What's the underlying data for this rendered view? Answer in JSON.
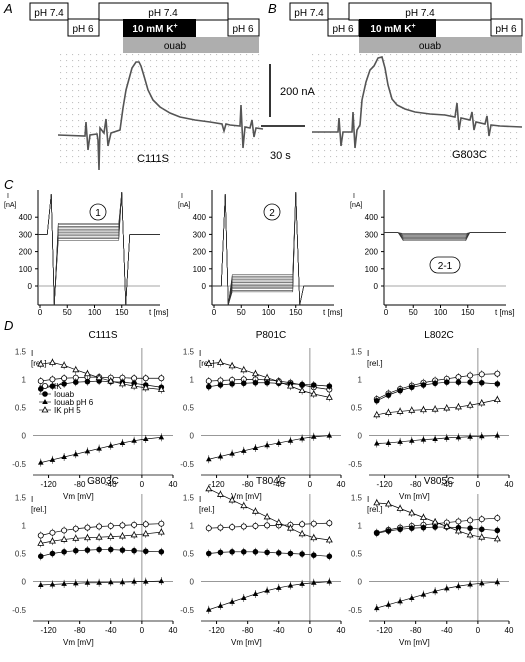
{
  "panel_letters": {
    "A": "A",
    "B": "B",
    "C": "C",
    "D": "D"
  },
  "colors": {
    "ink": "#000000",
    "ouabain_bar": "#aeaeae",
    "trace": "#555555",
    "dots": "#bdbdbd"
  },
  "protocol": {
    "ph74": "pH 7.4",
    "ph6": "pH 6",
    "k_label": "10 mM K",
    "k_sup": "+",
    "ouab": "ouab"
  },
  "traces": {
    "left_name": "C111S",
    "right_name": "G803C",
    "scale_current": "200 nA",
    "scale_time": "30 s"
  },
  "panel_c": {
    "y_label_top": "I",
    "y_label_unit": "[nA]",
    "x_label": "t [ms]",
    "y_ticks": [
      "400",
      "300",
      "200",
      "100",
      "0"
    ],
    "x_ticks": [
      "0",
      "50",
      "100",
      "150"
    ],
    "plot_labels": [
      "1",
      "2",
      "2-1"
    ]
  },
  "panel_d": {
    "y_label_top": "I",
    "y_label_unit": "[rel.]",
    "x_label": "Vm [mV]",
    "x_ticks": [
      "-120",
      "-80",
      "-40",
      "0",
      "40"
    ],
    "y_ticks": [
      "1.5",
      "1",
      "0.5",
      "0",
      "-0.5"
    ],
    "legend": [
      "IK",
      "Iouab",
      "Iouab pH 6",
      "IK pH 5"
    ]
  },
  "chart_data": [
    {
      "type": "line",
      "title": "C111S",
      "xlabel": "Vm [mV]",
      "ylabel": "I [rel.]",
      "xlim": [
        -140,
        40
      ],
      "ylim": [
        -0.7,
        1.7
      ],
      "x": [
        -130,
        -115,
        -100,
        -85,
        -70,
        -55,
        -40,
        -25,
        -10,
        5,
        25
      ],
      "series": [
        {
          "name": "IK",
          "marker": "open-circle",
          "values": [
            0.97,
            1.0,
            1.02,
            1.03,
            1.04,
            1.04,
            1.03,
            1.03,
            1.02,
            1.02,
            1.02
          ]
        },
        {
          "name": "Iouab",
          "marker": "filled-circle",
          "values": [
            0.83,
            0.88,
            0.92,
            0.95,
            0.96,
            0.97,
            0.96,
            0.95,
            0.93,
            0.9,
            0.86
          ]
        },
        {
          "name": "Iouab pH 6",
          "marker": "filled-triangle",
          "values": [
            -0.48,
            -0.43,
            -0.38,
            -0.33,
            -0.28,
            -0.23,
            -0.18,
            -0.13,
            -0.09,
            -0.06,
            -0.03
          ]
        },
        {
          "name": "IK pH 5",
          "marker": "open-triangle",
          "values": [
            1.27,
            1.3,
            1.25,
            1.17,
            1.1,
            1.03,
            0.97,
            0.92,
            0.88,
            0.85,
            0.82
          ]
        }
      ]
    },
    {
      "type": "line",
      "title": "P801C",
      "xlabel": "Vm [mV]",
      "ylabel": "I [rel.]",
      "xlim": [
        -140,
        40
      ],
      "ylim": [
        -0.7,
        1.7
      ],
      "x": [
        -130,
        -115,
        -100,
        -85,
        -70,
        -55,
        -40,
        -25,
        -10,
        5,
        25
      ],
      "series": [
        {
          "name": "IK",
          "marker": "open-circle",
          "values": [
            0.97,
            0.98,
            0.99,
            1.0,
            1.0,
            0.99,
            0.97,
            0.94,
            0.9,
            0.86,
            0.82
          ]
        },
        {
          "name": "Iouab",
          "marker": "filled-circle",
          "values": [
            0.87,
            0.9,
            0.92,
            0.93,
            0.94,
            0.94,
            0.93,
            0.92,
            0.91,
            0.9,
            0.88
          ]
        },
        {
          "name": "Iouab pH 6",
          "marker": "filled-triangle",
          "values": [
            -0.42,
            -0.37,
            -0.32,
            -0.27,
            -0.22,
            -0.17,
            -0.13,
            -0.09,
            -0.05,
            -0.02,
            0.0
          ]
        },
        {
          "name": "IK pH 5",
          "marker": "open-triangle",
          "values": [
            1.28,
            1.3,
            1.24,
            1.17,
            1.1,
            1.03,
            0.96,
            0.88,
            0.8,
            0.74,
            0.68
          ]
        }
      ]
    },
    {
      "type": "line",
      "title": "L802C",
      "xlabel": "Vm [mV]",
      "ylabel": "I [rel.]",
      "xlim": [
        -140,
        40
      ],
      "ylim": [
        -0.7,
        1.7
      ],
      "x": [
        -130,
        -115,
        -100,
        -85,
        -70,
        -55,
        -40,
        -25,
        -10,
        5,
        25
      ],
      "series": [
        {
          "name": "IK",
          "marker": "open-circle",
          "values": [
            0.65,
            0.75,
            0.83,
            0.89,
            0.94,
            0.98,
            1.01,
            1.04,
            1.07,
            1.09,
            1.1
          ]
        },
        {
          "name": "Iouab",
          "marker": "filled-circle",
          "values": [
            0.62,
            0.72,
            0.8,
            0.86,
            0.9,
            0.93,
            0.95,
            0.95,
            0.95,
            0.94,
            0.92
          ]
        },
        {
          "name": "Iouab pH 6",
          "marker": "filled-triangle",
          "values": [
            -0.14,
            -0.13,
            -0.11,
            -0.09,
            -0.07,
            -0.06,
            -0.04,
            -0.03,
            -0.02,
            -0.01,
            0.0
          ]
        },
        {
          "name": "IK pH 5",
          "marker": "open-triangle",
          "values": [
            0.37,
            0.41,
            0.43,
            0.45,
            0.46,
            0.47,
            0.49,
            0.51,
            0.54,
            0.58,
            0.64
          ]
        }
      ]
    },
    {
      "type": "line",
      "title": "G803C",
      "xlabel": "Vm [mV]",
      "ylabel": "I [rel.]",
      "xlim": [
        -140,
        40
      ],
      "ylim": [
        -0.7,
        1.7
      ],
      "x": [
        -130,
        -115,
        -100,
        -85,
        -70,
        -55,
        -40,
        -25,
        -10,
        5,
        25
      ],
      "series": [
        {
          "name": "IK",
          "marker": "open-circle",
          "values": [
            0.82,
            0.87,
            0.91,
            0.94,
            0.96,
            0.98,
            0.99,
            1.0,
            1.01,
            1.02,
            1.03
          ]
        },
        {
          "name": "Iouab",
          "marker": "filled-circle",
          "values": [
            0.45,
            0.5,
            0.53,
            0.55,
            0.56,
            0.57,
            0.57,
            0.56,
            0.55,
            0.54,
            0.53
          ]
        },
        {
          "name": "Iouab pH 6",
          "marker": "filled-triangle",
          "values": [
            -0.06,
            -0.05,
            -0.04,
            -0.03,
            -0.02,
            -0.02,
            -0.01,
            -0.01,
            0.0,
            0.0,
            0.01
          ]
        },
        {
          "name": "IK pH 5",
          "marker": "open-triangle",
          "values": [
            0.68,
            0.72,
            0.75,
            0.77,
            0.78,
            0.79,
            0.8,
            0.81,
            0.83,
            0.85,
            0.88
          ]
        }
      ]
    },
    {
      "type": "line",
      "title": "T804C",
      "xlabel": "Vm [mV]",
      "ylabel": "I [rel.]",
      "xlim": [
        -140,
        40
      ],
      "ylim": [
        -0.7,
        1.7
      ],
      "x": [
        -130,
        -115,
        -100,
        -85,
        -70,
        -55,
        -40,
        -25,
        -10,
        5,
        25
      ],
      "series": [
        {
          "name": "IK",
          "marker": "open-circle",
          "values": [
            0.95,
            0.96,
            0.97,
            0.98,
            0.99,
            1.0,
            1.0,
            1.01,
            1.02,
            1.03,
            1.04
          ]
        },
        {
          "name": "Iouab",
          "marker": "filled-circle",
          "values": [
            0.5,
            0.52,
            0.53,
            0.53,
            0.53,
            0.52,
            0.51,
            0.5,
            0.49,
            0.47,
            0.45
          ]
        },
        {
          "name": "Iouab pH 6",
          "marker": "filled-triangle",
          "values": [
            -0.5,
            -0.43,
            -0.36,
            -0.29,
            -0.22,
            -0.16,
            -0.11,
            -0.07,
            -0.04,
            -0.02,
            0.0
          ]
        },
        {
          "name": "IK pH 5",
          "marker": "open-triangle",
          "values": [
            1.65,
            1.55,
            1.45,
            1.35,
            1.25,
            1.15,
            1.05,
            0.95,
            0.85,
            0.78,
            0.74
          ]
        }
      ]
    },
    {
      "type": "line",
      "title": "V805C",
      "xlabel": "Vm [mV]",
      "ylabel": "I [rel.]",
      "xlim": [
        -140,
        40
      ],
      "ylim": [
        -0.7,
        1.7
      ],
      "x": [
        -130,
        -115,
        -100,
        -85,
        -70,
        -55,
        -40,
        -25,
        -10,
        5,
        25
      ],
      "series": [
        {
          "name": "IK",
          "marker": "open-circle",
          "values": [
            0.87,
            0.92,
            0.96,
            0.99,
            1.01,
            1.03,
            1.05,
            1.07,
            1.09,
            1.11,
            1.13
          ]
        },
        {
          "name": "Iouab",
          "marker": "filled-circle",
          "values": [
            0.86,
            0.9,
            0.93,
            0.95,
            0.96,
            0.97,
            0.97,
            0.96,
            0.95,
            0.93,
            0.91
          ]
        },
        {
          "name": "Iouab pH 6",
          "marker": "filled-triangle",
          "values": [
            -0.47,
            -0.41,
            -0.35,
            -0.29,
            -0.23,
            -0.17,
            -0.12,
            -0.08,
            -0.05,
            -0.03,
            -0.01
          ]
        },
        {
          "name": "IK pH 5",
          "marker": "open-triangle",
          "values": [
            1.4,
            1.38,
            1.3,
            1.22,
            1.14,
            1.06,
            0.98,
            0.9,
            0.83,
            0.79,
            0.76
          ]
        }
      ]
    }
  ]
}
